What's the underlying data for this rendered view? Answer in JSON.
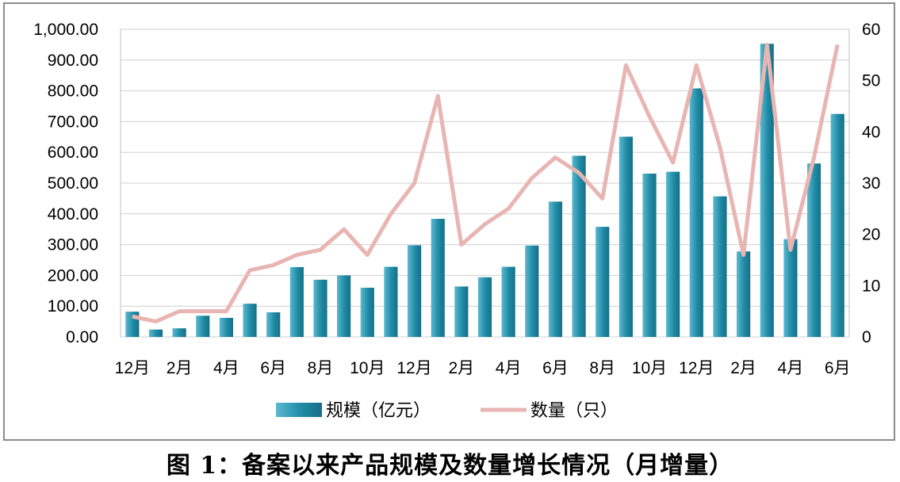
{
  "caption": "图 1：备案以来产品规模及数量增长情况（月增量）",
  "chart_data": {
    "type": "bar",
    "categories": [
      "12月",
      "1月",
      "2月",
      "3月",
      "4月",
      "5月",
      "6月",
      "7月",
      "8月",
      "9月",
      "10月",
      "11月",
      "12月",
      "1月",
      "2月",
      "3月",
      "4月",
      "5月",
      "6月",
      "7月",
      "8月",
      "9月",
      "10月",
      "11月",
      "12月",
      "1月",
      "2月",
      "3月",
      "4月",
      "5月",
      "6月"
    ],
    "x_tick_labels": [
      "12月",
      "2月",
      "4月",
      "6月",
      "8月",
      "10月",
      "12月",
      "2月",
      "4月",
      "6月",
      "8月",
      "10月",
      "12月",
      "2月",
      "4月",
      "6月"
    ],
    "series": [
      {
        "name": "规模（亿元）",
        "type": "bar",
        "axis": "left",
        "color": "#1f8ba6",
        "values": [
          82,
          24,
          28,
          69,
          62,
          108,
          80,
          227,
          186,
          200,
          160,
          228,
          298,
          384,
          164,
          194,
          228,
          297,
          440,
          589,
          358,
          651,
          531,
          537,
          808,
          457,
          278,
          953,
          318,
          564,
          725
        ]
      },
      {
        "name": "数量（只）",
        "type": "line",
        "axis": "right",
        "color": "#e8b5b2",
        "values": [
          4,
          3,
          5,
          5,
          5,
          13,
          14,
          16,
          17,
          21,
          16,
          24,
          30,
          47,
          18,
          22,
          25,
          31,
          35,
          32,
          27,
          53,
          43,
          34,
          53,
          37,
          16,
          57,
          17,
          35,
          57
        ]
      }
    ],
    "y_left": {
      "min": 0,
      "max": 1000,
      "step": 100,
      "tick_labels": [
        "0.00",
        "100.00",
        "200.00",
        "300.00",
        "400.00",
        "500.00",
        "600.00",
        "700.00",
        "800.00",
        "900.00",
        "1,000.00"
      ]
    },
    "y_right": {
      "min": 0,
      "max": 60,
      "step": 10,
      "tick_labels": [
        "0",
        "10",
        "20",
        "30",
        "40",
        "50",
        "60"
      ]
    },
    "grid": true,
    "legend_position": "bottom"
  }
}
